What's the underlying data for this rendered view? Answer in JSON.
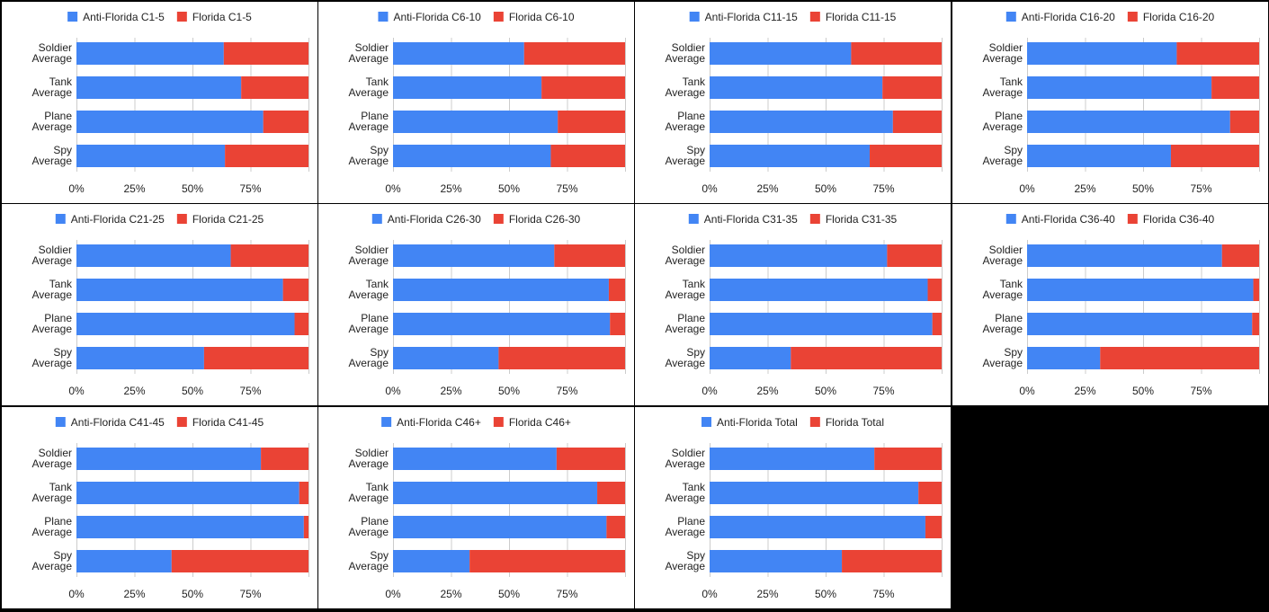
{
  "colors": {
    "anti": "#4285f4",
    "florida": "#ea4335",
    "background": "#000000"
  },
  "chart_data": [
    {
      "type": "bar",
      "stacked": "percent",
      "orientation": "horizontal",
      "categories": [
        [
          "Soldier",
          "Average"
        ],
        [
          "Tank",
          "Average"
        ],
        [
          "Plane",
          "Average"
        ],
        [
          "Spy",
          "Average"
        ]
      ],
      "series": [
        {
          "name": "Anti-Florida C1-5",
          "values": [
            63.5,
            71,
            80.5,
            64
          ]
        },
        {
          "name": "Florida C1-5",
          "values": [
            36.5,
            29,
            19.5,
            36
          ]
        }
      ],
      "xticks": [
        "0%",
        "25%",
        "50%",
        "75%"
      ],
      "xlim": [
        0,
        100
      ],
      "grid": true,
      "legend": "top"
    },
    {
      "type": "bar",
      "stacked": "percent",
      "orientation": "horizontal",
      "categories": [
        [
          "Soldier",
          "Average"
        ],
        [
          "Tank",
          "Average"
        ],
        [
          "Plane",
          "Average"
        ],
        [
          "Spy",
          "Average"
        ]
      ],
      "series": [
        {
          "name": "Anti-Florida C6-10",
          "values": [
            56.5,
            64,
            71,
            68
          ]
        },
        {
          "name": "Florida C6-10",
          "values": [
            43.5,
            36,
            29,
            32
          ]
        }
      ],
      "xticks": [
        "0%",
        "25%",
        "50%",
        "75%"
      ],
      "xlim": [
        0,
        100
      ],
      "grid": true,
      "legend": "top"
    },
    {
      "type": "bar",
      "stacked": "percent",
      "orientation": "horizontal",
      "categories": [
        [
          "Soldier",
          "Average"
        ],
        [
          "Tank",
          "Average"
        ],
        [
          "Plane",
          "Average"
        ],
        [
          "Spy",
          "Average"
        ]
      ],
      "series": [
        {
          "name": "Anti-Florida C11-15",
          "values": [
            61,
            74.5,
            79,
            69
          ]
        },
        {
          "name": "Florida C11-15",
          "values": [
            39,
            25.5,
            21,
            31
          ]
        }
      ],
      "xticks": [
        "0%",
        "25%",
        "50%",
        "75%"
      ],
      "xlim": [
        0,
        100
      ],
      "grid": true,
      "legend": "top"
    },
    {
      "type": "bar",
      "stacked": "percent",
      "orientation": "horizontal",
      "categories": [
        [
          "Soldier",
          "Average"
        ],
        [
          "Tank",
          "Average"
        ],
        [
          "Plane",
          "Average"
        ],
        [
          "Spy",
          "Average"
        ]
      ],
      "series": [
        {
          "name": "Anti-Florida C16-20",
          "values": [
            64.5,
            79.5,
            87.5,
            62
          ]
        },
        {
          "name": "Florida C16-20",
          "values": [
            35.5,
            20.5,
            12.5,
            38
          ]
        }
      ],
      "xticks": [
        "0%",
        "25%",
        "50%",
        "75%"
      ],
      "xlim": [
        0,
        100
      ],
      "grid": true,
      "legend": "top"
    },
    {
      "type": "bar",
      "stacked": "percent",
      "orientation": "horizontal",
      "categories": [
        [
          "Soldier",
          "Average"
        ],
        [
          "Tank",
          "Average"
        ],
        [
          "Plane",
          "Average"
        ],
        [
          "Spy",
          "Average"
        ]
      ],
      "series": [
        {
          "name": "Anti-Florida C21-25",
          "values": [
            66.5,
            89,
            94,
            55
          ]
        },
        {
          "name": "Florida C21-25",
          "values": [
            33.5,
            11,
            6,
            45
          ]
        }
      ],
      "xticks": [
        "0%",
        "25%",
        "50%",
        "75%"
      ],
      "xlim": [
        0,
        100
      ],
      "grid": true,
      "legend": "top"
    },
    {
      "type": "bar",
      "stacked": "percent",
      "orientation": "horizontal",
      "categories": [
        [
          "Soldier",
          "Average"
        ],
        [
          "Tank",
          "Average"
        ],
        [
          "Plane",
          "Average"
        ],
        [
          "Spy",
          "Average"
        ]
      ],
      "series": [
        {
          "name": "Anti-Florida C26-30",
          "values": [
            69.5,
            93,
            93.5,
            45.5
          ]
        },
        {
          "name": "Florida C26-30",
          "values": [
            30.5,
            7,
            6.5,
            54.5
          ]
        }
      ],
      "xticks": [
        "0%",
        "25%",
        "50%",
        "75%"
      ],
      "xlim": [
        0,
        100
      ],
      "grid": true,
      "legend": "top"
    },
    {
      "type": "bar",
      "stacked": "percent",
      "orientation": "horizontal",
      "categories": [
        [
          "Soldier",
          "Average"
        ],
        [
          "Tank",
          "Average"
        ],
        [
          "Plane",
          "Average"
        ],
        [
          "Spy",
          "Average"
        ]
      ],
      "series": [
        {
          "name": "Anti-Florida C31-35",
          "values": [
            76.5,
            94,
            96,
            35
          ]
        },
        {
          "name": "Florida C31-35",
          "values": [
            23.5,
            6,
            4,
            65
          ]
        }
      ],
      "xticks": [
        "0%",
        "25%",
        "50%",
        "75%"
      ],
      "xlim": [
        0,
        100
      ],
      "grid": true,
      "legend": "top"
    },
    {
      "type": "bar",
      "stacked": "percent",
      "orientation": "horizontal",
      "categories": [
        [
          "Soldier",
          "Average"
        ],
        [
          "Tank",
          "Average"
        ],
        [
          "Plane",
          "Average"
        ],
        [
          "Spy",
          "Average"
        ]
      ],
      "series": [
        {
          "name": "Anti-Florida C36-40",
          "values": [
            84,
            97.5,
            97,
            31.5
          ]
        },
        {
          "name": "Florida C36-40",
          "values": [
            16,
            2.5,
            3,
            68.5
          ]
        }
      ],
      "xticks": [
        "0%",
        "25%",
        "50%",
        "75%"
      ],
      "xlim": [
        0,
        100
      ],
      "grid": true,
      "legend": "top"
    },
    {
      "type": "bar",
      "stacked": "percent",
      "orientation": "horizontal",
      "categories": [
        [
          "Soldier",
          "Average"
        ],
        [
          "Tank",
          "Average"
        ],
        [
          "Plane",
          "Average"
        ],
        [
          "Spy",
          "Average"
        ]
      ],
      "series": [
        {
          "name": "Anti-Florida C41-45",
          "values": [
            79.5,
            96,
            98,
            41
          ]
        },
        {
          "name": "Florida C41-45",
          "values": [
            20.5,
            4,
            2,
            59
          ]
        }
      ],
      "xticks": [
        "0%",
        "25%",
        "50%",
        "75%"
      ],
      "xlim": [
        0,
        100
      ],
      "grid": true,
      "legend": "top"
    },
    {
      "type": "bar",
      "stacked": "percent",
      "orientation": "horizontal",
      "categories": [
        [
          "Soldier",
          "Average"
        ],
        [
          "Tank",
          "Average"
        ],
        [
          "Plane",
          "Average"
        ],
        [
          "Spy",
          "Average"
        ]
      ],
      "series": [
        {
          "name": "Anti-Florida C46+",
          "values": [
            70.5,
            88,
            92,
            33
          ]
        },
        {
          "name": "Florida C46+",
          "values": [
            29.5,
            12,
            8,
            67
          ]
        }
      ],
      "xticks": [
        "0%",
        "25%",
        "50%",
        "75%"
      ],
      "xlim": [
        0,
        100
      ],
      "grid": true,
      "legend": "top"
    },
    {
      "type": "bar",
      "stacked": "percent",
      "orientation": "horizontal",
      "categories": [
        [
          "Soldier",
          "Average"
        ],
        [
          "Tank",
          "Average"
        ],
        [
          "Plane",
          "Average"
        ],
        [
          "Spy",
          "Average"
        ]
      ],
      "series": [
        {
          "name": "Anti-Florida Total",
          "values": [
            71,
            90,
            93,
            57
          ]
        },
        {
          "name": "Florida Total",
          "values": [
            29,
            10,
            7,
            43
          ]
        }
      ],
      "xticks": [
        "0%",
        "25%",
        "50%",
        "75%"
      ],
      "xlim": [
        0,
        100
      ],
      "grid": true,
      "legend": "top"
    }
  ]
}
